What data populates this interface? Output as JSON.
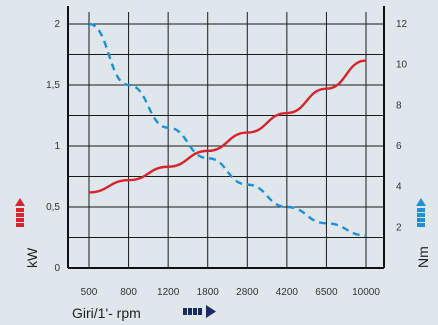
{
  "chart_data": {
    "type": "line",
    "title": "",
    "x_label": "Giri/1'- rpm",
    "x_categories": [
      "500",
      "800",
      "1200",
      "1800",
      "2800",
      "4200",
      "6500",
      "10000"
    ],
    "y_left": {
      "label": "kW",
      "range": [
        0,
        2
      ],
      "ticks": [
        "0",
        "0,5",
        "1",
        "1,5",
        "2"
      ]
    },
    "y_right": {
      "label": "Nm",
      "range": [
        0,
        12
      ],
      "ticks": [
        "2",
        "4",
        "6",
        "8",
        "10",
        "12"
      ]
    },
    "grid": true,
    "series": [
      {
        "axis": "left",
        "style": "solid",
        "color": "#d9232d",
        "values": [
          0.62,
          0.72,
          0.83,
          0.96,
          1.11,
          1.27,
          1.47,
          1.7
        ]
      },
      {
        "axis": "right",
        "style": "dashed",
        "color": "#1e90d6",
        "values": [
          12,
          9,
          6.9,
          5.4,
          4.1,
          3,
          2.2,
          1.6
        ]
      }
    ],
    "colors": {
      "kw_arrow": "#d9232d",
      "nm_arrow": "#1e90d6",
      "rpm_arrow": "#1a2b6b"
    }
  }
}
